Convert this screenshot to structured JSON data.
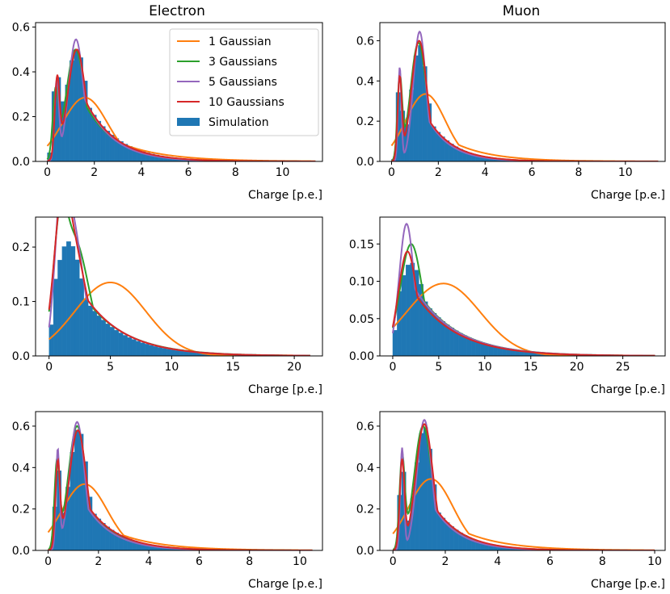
{
  "colors": {
    "hist": "#1f77b4",
    "g1": "#ff7f0e",
    "g3": "#2ca02c",
    "g5": "#9467bd",
    "g10": "#d62728"
  },
  "chart_data": {
    "type": "bar",
    "column_titles": [
      "Electron",
      "Muon"
    ],
    "legend": {
      "placement": "top-right of first panel",
      "entries": [
        "1 Gaussian",
        "3 Gaussians",
        "5 Gaussians",
        "10 Gaussians",
        "Simulation"
      ]
    },
    "panels": [
      {
        "id": "electron-row1",
        "xlabel": "Charge [p.e.]",
        "xlim": [
          -0.5,
          11.7
        ],
        "ylim": [
          0,
          0.62
        ],
        "xticks": [
          0,
          2,
          4,
          6,
          8,
          10
        ],
        "xtick_labels": [
          "0",
          "2",
          "4",
          "6",
          "8",
          "10"
        ],
        "yticks": [
          0,
          0.2,
          0.4,
          0.6
        ],
        "ytick_labels": [
          "0.0",
          "0.2",
          "0.4",
          "0.6"
        ],
        "hist": {
          "max_x": 11.4,
          "bins": 60,
          "peaks": [
            [
              0.38,
              0.32,
              0.15
            ],
            [
              1.25,
              0.5,
              0.45
            ]
          ],
          "tail": [
            0.36,
            1.35
          ]
        },
        "curves": {
          "g1": {
            "peaks": [
              [
                1.6,
                0.285,
                0.95
              ]
            ],
            "tail": [
              0.18,
              1.9
            ]
          },
          "g3": {
            "peaks": [
              [
                0.35,
                0.28,
                0.12
              ],
              [
                1.2,
                0.5,
                0.4
              ]
            ],
            "tail": [
              0.35,
              1.3
            ]
          },
          "g5": {
            "peaks": [
              [
                0.4,
                0.35,
                0.09
              ],
              [
                1.22,
                0.545,
                0.32
              ]
            ],
            "tail": [
              0.38,
              1.2
            ]
          },
          "g10": {
            "peaks": [
              [
                0.42,
                0.34,
                0.1
              ],
              [
                1.25,
                0.5,
                0.38
              ]
            ],
            "tail": [
              0.36,
              1.3
            ]
          }
        }
      },
      {
        "id": "muon-row1",
        "xlabel": "Charge [p.e.]",
        "xlim": [
          -0.5,
          11.7
        ],
        "ylim": [
          0,
          0.69
        ],
        "xticks": [
          0,
          2,
          4,
          6,
          8,
          10
        ],
        "xtick_labels": [
          "0",
          "2",
          "4",
          "6",
          "8",
          "10"
        ],
        "yticks": [
          0,
          0.2,
          0.4,
          0.6
        ],
        "ytick_labels": [
          "0.0",
          "0.2",
          "0.4",
          "0.6"
        ],
        "hist": {
          "max_x": 11.4,
          "bins": 60,
          "peaks": [
            [
              0.35,
              0.4,
              0.1
            ],
            [
              1.2,
              0.58,
              0.35
            ]
          ],
          "tail": [
            0.3,
            1.1
          ]
        },
        "curves": {
          "g1": {
            "peaks": [
              [
                1.45,
                0.335,
                0.85
              ]
            ],
            "tail": [
              0.2,
              1.6
            ]
          },
          "g3": {
            "peaks": [
              [
                0.35,
                0.4,
                0.1
              ],
              [
                1.15,
                0.59,
                0.34
              ]
            ],
            "tail": [
              0.3,
              1.1
            ]
          },
          "g5": {
            "peaks": [
              [
                0.35,
                0.465,
                0.07
              ],
              [
                1.2,
                0.645,
                0.27
              ]
            ],
            "tail": [
              0.3,
              1.0
            ]
          },
          "g10": {
            "peaks": [
              [
                0.35,
                0.4,
                0.09
              ],
              [
                1.18,
                0.6,
                0.33
              ]
            ],
            "tail": [
              0.3,
              1.1
            ]
          }
        }
      },
      {
        "id": "electron-row2",
        "xlabel": "Charge [p.e.]",
        "xlim": [
          -1.1,
          22.3
        ],
        "ylim": [
          0,
          0.255
        ],
        "xticks": [
          0,
          5,
          10,
          15,
          20
        ],
        "xtick_labels": [
          "0",
          "5",
          "10",
          "15",
          "20"
        ],
        "yticks": [
          0,
          0.1,
          0.2
        ],
        "ytick_labels": [
          "0.0",
          "0.1",
          "0.2"
        ],
        "hist": {
          "max_x": 21.3,
          "bins": 60,
          "peaks": [
            [
              1.6,
              0.21,
              1.2
            ]
          ],
          "tail": [
            0.16,
            3.2
          ]
        },
        "curves": {
          "g1": {
            "peaks": [
              [
                5.0,
                0.135,
                2.9
              ]
            ],
            "tail": [
              0.01,
              6
            ]
          },
          "g3": {
            "peaks": [
              [
                0.9,
                0.14,
                0.5
              ],
              [
                2.0,
                0.215,
                1.2
              ]
            ],
            "tail": [
              0.14,
              3.4
            ]
          },
          "g5": {
            "peaks": [
              [
                1.0,
                0.2,
                0.5
              ],
              [
                1.9,
                0.235,
                0.9
              ]
            ],
            "tail": [
              0.15,
              3.3
            ]
          },
          "g10": {
            "peaks": [
              [
                1.0,
                0.16,
                0.6
              ],
              [
                1.9,
                0.2,
                1.1
              ]
            ],
            "tail": [
              0.15,
              3.3
            ]
          }
        }
      },
      {
        "id": "muon-row2",
        "xlabel": "Charge [p.e.]",
        "xlim": [
          -1.4,
          29.6
        ],
        "ylim": [
          0,
          0.186
        ],
        "xticks": [
          0,
          5,
          10,
          15,
          20,
          25
        ],
        "xtick_labels": [
          "0",
          "5",
          "10",
          "15",
          "20",
          "25"
        ],
        "yticks": [
          0,
          0.05,
          0.1,
          0.15
        ],
        "ytick_labels": [
          "0.00",
          "0.05",
          "0.10",
          "0.15"
        ],
        "hist": {
          "max_x": 28.5,
          "bins": 60,
          "peaks": [
            [
              2.0,
              0.125,
              1.5
            ]
          ],
          "tail": [
            0.1,
            4.5
          ]
        },
        "curves": {
          "g1": {
            "peaks": [
              [
                5.5,
                0.097,
                4.0
              ]
            ],
            "tail": [
              0.01,
              7
            ]
          },
          "g3": {
            "peaks": [
              [
                2.0,
                0.15,
                1.2
              ]
            ],
            "tail": [
              0.1,
              4.5
            ]
          },
          "g5": {
            "peaks": [
              [
                1.5,
                0.177,
                0.8
              ]
            ],
            "tail": [
              0.11,
              4.5
            ]
          },
          "g10": {
            "peaks": [
              [
                1.6,
                0.14,
                1.0
              ]
            ],
            "tail": [
              0.1,
              4.5
            ]
          }
        }
      },
      {
        "id": "electron-row3",
        "xlabel": "Charge [p.e.]",
        "xlim": [
          -0.5,
          10.9
        ],
        "ylim": [
          0,
          0.67
        ],
        "xticks": [
          0,
          2,
          4,
          6,
          8,
          10
        ],
        "xtick_labels": [
          "0",
          "2",
          "4",
          "6",
          "8",
          "10"
        ],
        "yticks": [
          0,
          0.2,
          0.4,
          0.6
        ],
        "ytick_labels": [
          "0.0",
          "0.2",
          "0.4",
          "0.6"
        ],
        "hist": {
          "max_x": 10.5,
          "bins": 60,
          "peaks": [
            [
              0.38,
              0.38,
              0.1
            ],
            [
              1.2,
              0.59,
              0.36
            ]
          ],
          "tail": [
            0.3,
            1.2
          ]
        },
        "curves": {
          "g1": {
            "peaks": [
              [
                1.45,
                0.32,
                0.9
              ]
            ],
            "tail": [
              0.18,
              1.7
            ]
          },
          "g3": {
            "peaks": [
              [
                0.35,
                0.4,
                0.1
              ],
              [
                1.15,
                0.6,
                0.35
              ]
            ],
            "tail": [
              0.3,
              1.2
            ]
          },
          "g5": {
            "peaks": [
              [
                0.38,
                0.47,
                0.07
              ],
              [
                1.15,
                0.62,
                0.3
              ]
            ],
            "tail": [
              0.3,
              1.1
            ]
          },
          "g10": {
            "peaks": [
              [
                0.38,
                0.4,
                0.09
              ],
              [
                1.18,
                0.58,
                0.34
              ]
            ],
            "tail": [
              0.3,
              1.2
            ]
          }
        }
      },
      {
        "id": "muon-row3",
        "xlabel": "Charge [p.e.]",
        "xlim": [
          -0.5,
          10.4
        ],
        "ylim": [
          0,
          0.67
        ],
        "xticks": [
          0,
          2,
          4,
          6,
          8,
          10
        ],
        "xtick_labels": [
          "0",
          "2",
          "4",
          "6",
          "8",
          "10"
        ],
        "yticks": [
          0,
          0.2,
          0.4,
          0.6
        ],
        "ytick_labels": [
          "0.0",
          "0.2",
          "0.4",
          "0.6"
        ],
        "hist": {
          "max_x": 10.0,
          "bins": 60,
          "peaks": [
            [
              0.35,
              0.42,
              0.1
            ],
            [
              1.2,
              0.6,
              0.34
            ]
          ],
          "tail": [
            0.3,
            1.1
          ]
        },
        "curves": {
          "g1": {
            "peaks": [
              [
                1.45,
                0.345,
                0.85
              ]
            ],
            "tail": [
              0.2,
              1.6
            ]
          },
          "g3": {
            "peaks": [
              [
                0.35,
                0.43,
                0.1
              ],
              [
                1.15,
                0.6,
                0.34
              ]
            ],
            "tail": [
              0.3,
              1.1
            ]
          },
          "g5": {
            "peaks": [
              [
                0.35,
                0.49,
                0.07
              ],
              [
                1.2,
                0.63,
                0.28
              ]
            ],
            "tail": [
              0.3,
              1.0
            ]
          },
          "g10": {
            "peaks": [
              [
                0.35,
                0.42,
                0.09
              ],
              [
                1.2,
                0.61,
                0.33
              ]
            ],
            "tail": [
              0.3,
              1.1
            ]
          }
        }
      }
    ]
  }
}
